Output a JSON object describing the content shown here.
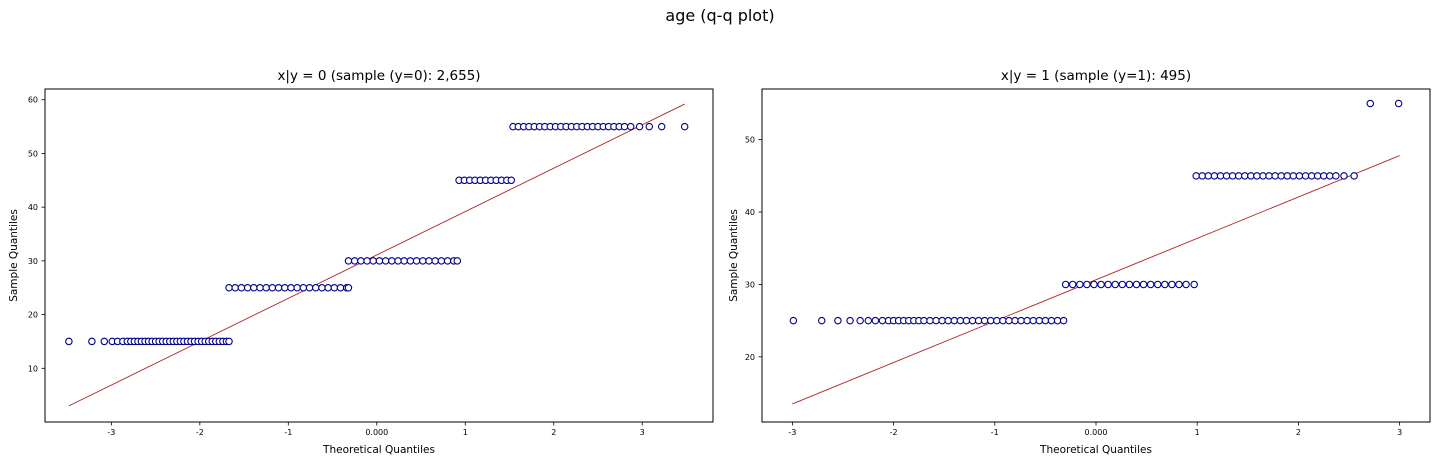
{
  "figure": {
    "title": "age (q-q plot)"
  },
  "colors": {
    "marker_edge": "#00008b",
    "marker_face": "#ffffff",
    "fit_line": "#b22222",
    "axes": "#000000"
  },
  "chart_data": [
    {
      "type": "scatter",
      "title": "x|y = 0 (sample (y=0): 2,655)",
      "xlabel": "Theoretical Quantiles",
      "ylabel": "Sample Quantiles",
      "xlim": [
        -3.75,
        3.8
      ],
      "ylim": [
        0,
        62
      ],
      "xticks": [
        -3,
        -2,
        -1,
        0,
        1,
        2,
        3
      ],
      "xtick_labels": [
        "-3",
        "-2",
        "-1",
        "0.000",
        "1",
        "2",
        "3"
      ],
      "yticks": [
        10,
        20,
        30,
        40,
        50,
        60
      ],
      "ytick_labels": [
        "10",
        "20",
        "30",
        "40",
        "50",
        "60"
      ],
      "grid": false,
      "line": {
        "x": [
          -3.48,
          3.48
        ],
        "y": [
          3,
          59.2
        ]
      },
      "series": [
        {
          "y": 15,
          "x": [
            -3.48,
            -3.22,
            -3.08,
            -2.99,
            -2.93,
            -2.87,
            -2.82,
            -2.78,
            -2.74,
            -2.7,
            -2.66,
            -2.62,
            -2.58,
            -2.54,
            -2.5,
            -2.46,
            -2.42,
            -2.38,
            -2.34,
            -2.3,
            -2.26,
            -2.22,
            -2.18,
            -2.14,
            -2.1,
            -2.06,
            -2.02,
            -1.98,
            -1.94,
            -1.9,
            -1.86,
            -1.82,
            -1.78,
            -1.74,
            -1.7,
            -1.67
          ]
        },
        {
          "y": 25,
          "x": [
            -1.67,
            -1.6,
            -1.53,
            -1.46,
            -1.39,
            -1.32,
            -1.25,
            -1.18,
            -1.11,
            -1.04,
            -0.97,
            -0.9,
            -0.83,
            -0.76,
            -0.69,
            -0.62,
            -0.55,
            -0.48,
            -0.41,
            -0.34,
            -0.32
          ]
        },
        {
          "y": 30,
          "x": [
            -0.32,
            -0.25,
            -0.18,
            -0.11,
            -0.04,
            0.03,
            0.1,
            0.17,
            0.24,
            0.31,
            0.38,
            0.45,
            0.52,
            0.59,
            0.66,
            0.73,
            0.8,
            0.87,
            0.91
          ]
        },
        {
          "y": 45,
          "x": [
            0.93,
            0.99,
            1.05,
            1.11,
            1.17,
            1.23,
            1.29,
            1.35,
            1.41,
            1.47,
            1.52
          ]
        },
        {
          "y": 55,
          "x": [
            1.54,
            1.6,
            1.66,
            1.72,
            1.78,
            1.84,
            1.9,
            1.96,
            2.02,
            2.08,
            2.14,
            2.2,
            2.26,
            2.32,
            2.38,
            2.44,
            2.5,
            2.56,
            2.62,
            2.68,
            2.74,
            2.8,
            2.87,
            2.97,
            3.08,
            3.22,
            3.48
          ]
        }
      ]
    },
    {
      "type": "scatter",
      "title": "x|y = 1 (sample (y=1): 495)",
      "xlabel": "Theoretical Quantiles",
      "ylabel": "Sample Quantiles",
      "xlim": [
        -3.3,
        3.3
      ],
      "ylim": [
        11,
        57
      ],
      "xticks": [
        -3,
        -2,
        -1,
        0,
        1,
        2,
        3
      ],
      "xtick_labels": [
        "-3",
        "-2",
        "-1",
        "0.000",
        "1",
        "2",
        "3"
      ],
      "yticks": [
        20,
        30,
        40,
        50
      ],
      "ytick_labels": [
        "20",
        "30",
        "40",
        "50"
      ],
      "grid": false,
      "line": {
        "x": [
          -3.0,
          3.0
        ],
        "y": [
          13.5,
          47.8
        ]
      },
      "series": [
        {
          "y": 25,
          "x": [
            -2.99,
            -2.71,
            -2.55,
            -2.43,
            -2.33,
            -2.25,
            -2.18,
            -2.11,
            -2.05,
            -2.0,
            -1.95,
            -1.9,
            -1.85,
            -1.8,
            -1.75,
            -1.7,
            -1.64,
            -1.58,
            -1.52,
            -1.46,
            -1.4,
            -1.34,
            -1.28,
            -1.22,
            -1.16,
            -1.1,
            -1.04,
            -0.98,
            -0.92,
            -0.86,
            -0.8,
            -0.74,
            -0.68,
            -0.62,
            -0.56,
            -0.5,
            -0.44,
            -0.38,
            -0.32
          ]
        },
        {
          "y": 30,
          "x": [
            -0.3,
            -0.23,
            -0.16,
            -0.09,
            -0.02,
            0.05,
            0.12,
            0.19,
            0.26,
            0.33,
            0.4,
            0.47,
            0.54,
            0.61,
            0.68,
            0.75,
            0.82,
            0.89,
            0.97
          ]
        },
        {
          "y": 45,
          "x": [
            0.99,
            1.05,
            1.11,
            1.17,
            1.23,
            1.29,
            1.35,
            1.41,
            1.47,
            1.53,
            1.59,
            1.65,
            1.71,
            1.77,
            1.83,
            1.89,
            1.95,
            2.01,
            2.07,
            2.13,
            2.19,
            2.25,
            2.31,
            2.37,
            2.45,
            2.55
          ]
        },
        {
          "y": 55,
          "x": [
            2.71,
            2.99
          ]
        }
      ]
    }
  ]
}
